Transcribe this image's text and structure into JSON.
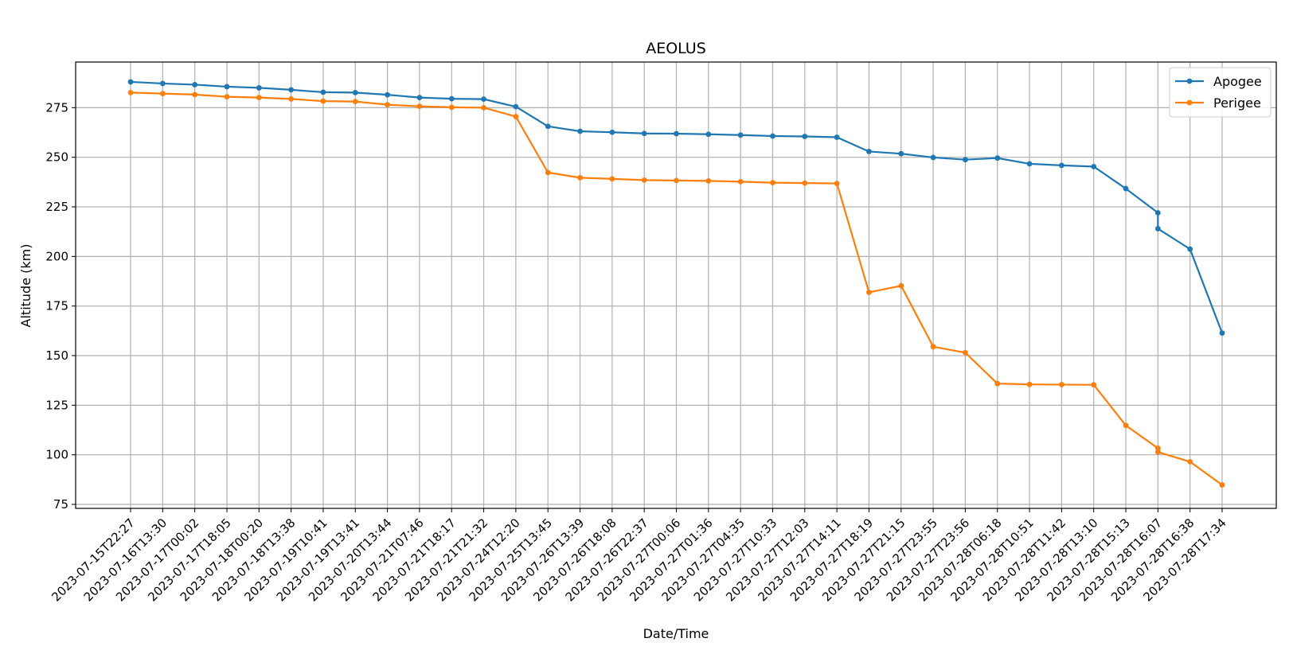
{
  "chart_data": {
    "type": "line",
    "title": "AEOLUS",
    "xlabel": "Date/Time",
    "ylabel": "Altitude (km)",
    "ylim": [
      73,
      298
    ],
    "yticks": [
      75,
      100,
      125,
      150,
      175,
      200,
      225,
      250,
      275
    ],
    "grid": true,
    "legend_position": "top-right",
    "x_tick_labels": [
      "2023-07-15T22:27",
      "2023-07-16T13:30",
      "2023-07-17T00:02",
      "2023-07-17T18:05",
      "2023-07-18T00:20",
      "2023-07-18T13:38",
      "2023-07-19T10:41",
      "2023-07-19T13:41",
      "2023-07-20T13:44",
      "2023-07-21T07:46",
      "2023-07-21T18:17",
      "2023-07-21T21:32",
      "2023-07-24T12:20",
      "2023-07-25T13:45",
      "2023-07-26T13:39",
      "2023-07-26T18:08",
      "2023-07-26T22:37",
      "2023-07-27T00:06",
      "2023-07-27T01:36",
      "2023-07-27T04:35",
      "2023-07-27T10:33",
      "2023-07-27T12:03",
      "2023-07-27T14:11",
      "2023-07-27T18:19",
      "2023-07-27T21:15",
      "2023-07-27T23:55",
      "2023-07-27T23:56",
      "2023-07-28T06:18",
      "2023-07-28T10:51",
      "2023-07-28T11:42",
      "2023-07-28T13:10",
      "2023-07-28T15:13",
      "2023-07-28T16:07",
      "2023-07-28T16:38",
      "2023-07-28T17:34"
    ],
    "series": [
      {
        "name": "Apogee",
        "color": "#1f77b4",
        "x": [
          0,
          1,
          2,
          3,
          4,
          5,
          6,
          7,
          8,
          9,
          10,
          11,
          12,
          13,
          14,
          15,
          16,
          17,
          18,
          19,
          20,
          21,
          22,
          23,
          24,
          25,
          26,
          27,
          28,
          29,
          30,
          31,
          32,
          32,
          33,
          34
        ],
        "values": [
          288,
          287.2,
          286.6,
          285.6,
          285,
          284,
          282.8,
          282.6,
          281.5,
          280.1,
          279.5,
          279.3,
          275.5,
          265.6,
          263.1,
          262.6,
          262,
          261.9,
          261.6,
          261.2,
          260.7,
          260.5,
          260.1,
          252.9,
          251.8,
          249.9,
          248.8,
          249.6,
          246.7,
          245.9,
          245.3,
          234.2,
          222,
          214,
          203.7,
          161.4
        ]
      },
      {
        "name": "Perigee",
        "color": "#ff7f0e",
        "x": [
          0,
          1,
          2,
          3,
          4,
          5,
          6,
          7,
          8,
          9,
          10,
          11,
          12,
          13,
          14,
          15,
          16,
          17,
          18,
          19,
          20,
          21,
          22,
          23,
          24,
          25,
          26,
          27,
          28,
          29,
          30,
          31,
          32,
          32,
          33,
          34
        ],
        "values": [
          282.6,
          282.1,
          281.6,
          280.5,
          280.1,
          279.4,
          278.3,
          278.1,
          276.5,
          275.7,
          275.2,
          275,
          270.5,
          242.3,
          239.7,
          239.1,
          238.5,
          238.3,
          238.1,
          237.7,
          237.2,
          237,
          236.8,
          181.9,
          185.2,
          154.5,
          151.5,
          135.9,
          135.5,
          135.4,
          135.3,
          114.8,
          103.3,
          101.4,
          96.5,
          84.8
        ]
      }
    ]
  }
}
